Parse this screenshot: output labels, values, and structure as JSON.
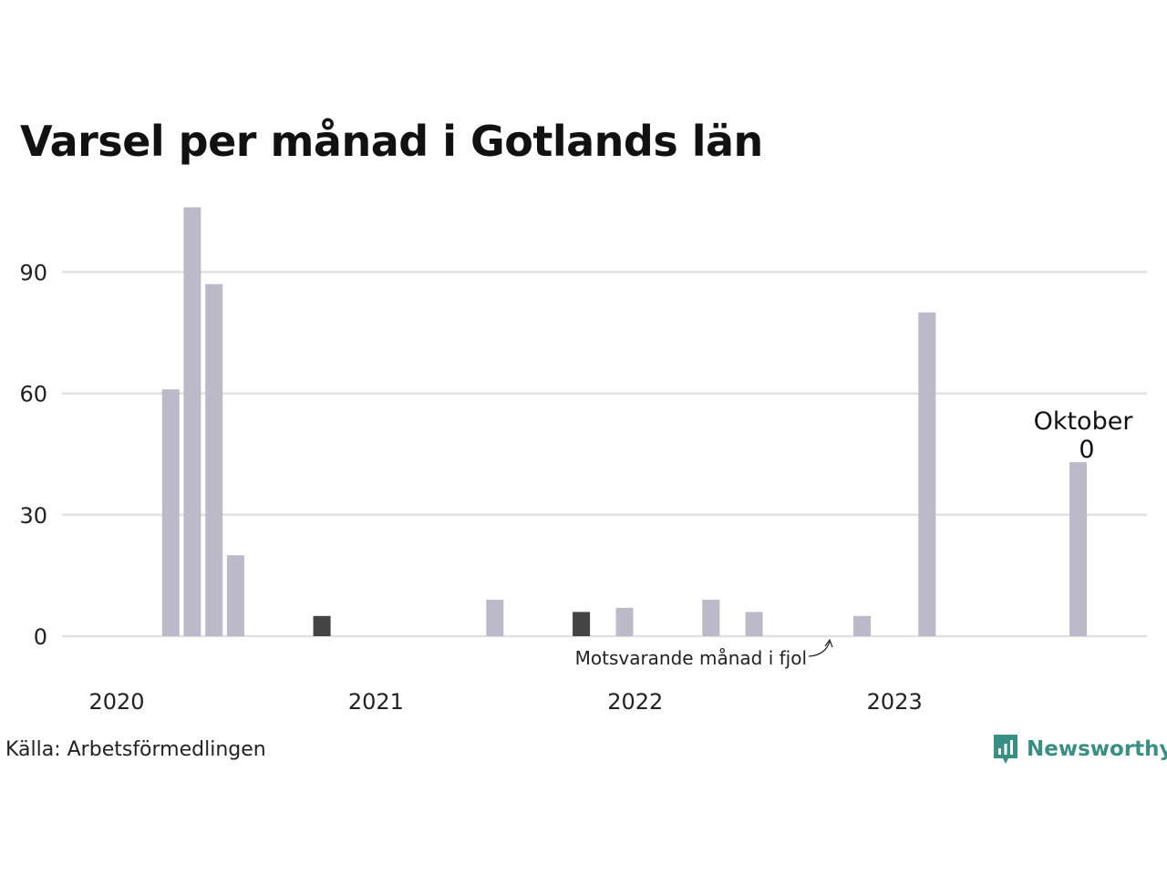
{
  "title": "Varsel per månad i Gotlands län",
  "source": "Källa: Arbetsförmedlingen",
  "brand": {
    "name": "Newsworthy",
    "icon": "newsworthy-logo-icon",
    "color": "#3a8f84"
  },
  "colors": {
    "bar": "#bcbac9",
    "highlight": "#444444",
    "grid": "#e1e1e4"
  },
  "chart_data": {
    "type": "bar",
    "x_start": "2020-01",
    "months": 46,
    "x_tick_labels": [
      "2020",
      "2021",
      "2022",
      "2023"
    ],
    "y_ticks": [
      0,
      30,
      60,
      90
    ],
    "ylim": [
      0,
      110
    ],
    "grid": true,
    "bars": [
      {
        "month": "2020-03",
        "value": 61
      },
      {
        "month": "2020-04",
        "value": 106
      },
      {
        "month": "2020-05",
        "value": 87
      },
      {
        "month": "2020-06",
        "value": 20
      },
      {
        "month": "2020-10",
        "value": 5,
        "highlight": true
      },
      {
        "month": "2021-06",
        "value": 9
      },
      {
        "month": "2021-10",
        "value": 6,
        "highlight": true
      },
      {
        "month": "2021-12",
        "value": 7
      },
      {
        "month": "2022-04",
        "value": 9
      },
      {
        "month": "2022-06",
        "value": 6
      },
      {
        "month": "2022-11",
        "value": 5
      },
      {
        "month": "2023-02",
        "value": 80
      },
      {
        "month": "2023-09",
        "value": 43
      }
    ],
    "annotations": {
      "last_month_label": "Oktober",
      "last_month_value": "0",
      "previous_year_note": "Motsvarande månad i fjol"
    }
  }
}
